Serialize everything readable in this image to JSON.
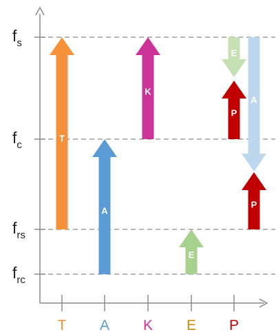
{
  "levels": [
    {
      "id": "fs",
      "main": "f",
      "sub": "s"
    },
    {
      "id": "fc",
      "main": "f",
      "sub": "c"
    },
    {
      "id": "frs",
      "main": "f",
      "sub": "rs"
    },
    {
      "id": "frc",
      "main": "f",
      "sub": "rc"
    }
  ],
  "categories": [
    {
      "id": "T",
      "label": "T",
      "color": "#f7923a"
    },
    {
      "id": "A",
      "label": "A",
      "color": "#5b9bd5"
    },
    {
      "id": "K",
      "label": "K",
      "color": "#cc3399"
    },
    {
      "id": "E",
      "label": "E",
      "color": "#c69000"
    },
    {
      "id": "P",
      "label": "P",
      "color": "#c00000"
    }
  ],
  "arrows": [
    {
      "id": "T-up",
      "label": "T",
      "color": "#f7923a",
      "from": "frs",
      "to": "fs",
      "direction": "up"
    },
    {
      "id": "A-up",
      "label": "A",
      "color": "#5b9bd5",
      "from": "frc",
      "to": "fc",
      "direction": "up"
    },
    {
      "id": "K-up",
      "label": "K",
      "color": "#cc3399",
      "from": "fc",
      "to": "fs",
      "direction": "up"
    },
    {
      "id": "E-up",
      "label": "E",
      "color": "#a9d18e",
      "from": "frc",
      "to": "frs",
      "direction": "up"
    },
    {
      "id": "E-down",
      "label": "E",
      "color": "#c5e0b4",
      "from": "fs",
      "to": "fs",
      "direction": "down"
    },
    {
      "id": "P-up-upper",
      "label": "P",
      "color": "#c00000",
      "from": "fc",
      "to": "fs",
      "direction": "up"
    },
    {
      "id": "A-down",
      "label": "A",
      "color": "#bdd7ee",
      "from": "fs",
      "to": "fc",
      "direction": "down"
    },
    {
      "id": "P-up-lower",
      "label": "P",
      "color": "#c00000",
      "from": "frs",
      "to": "fc",
      "direction": "up"
    }
  ]
}
